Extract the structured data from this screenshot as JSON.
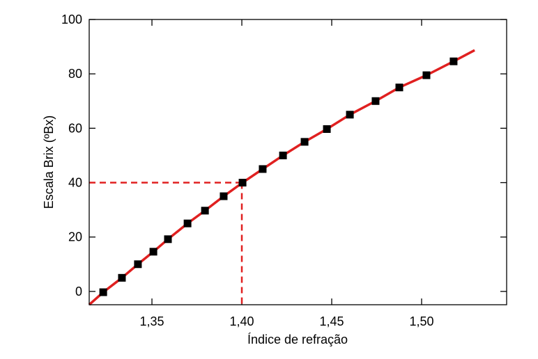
{
  "chart_data": {
    "type": "scatter",
    "xlabel": "Índice de refração",
    "ylabel": "Escala Brix (ºBx)",
    "xlim": [
      1.3151,
      1.5473
    ],
    "ylim": [
      -4.9,
      100
    ],
    "xticks": [
      {
        "value": 1.35,
        "label": "1,35"
      },
      {
        "value": 1.4,
        "label": "1,40"
      },
      {
        "value": 1.45,
        "label": "1,45"
      },
      {
        "value": 1.5,
        "label": "1,50"
      }
    ],
    "yticks": [
      0,
      20,
      40,
      60,
      80,
      100
    ],
    "series": [
      {
        "kind": "line",
        "color": "#e02020",
        "x": [
          1.3151,
          1.3229,
          1.3333,
          1.3422,
          1.3508,
          1.3589,
          1.3698,
          1.3795,
          1.3899,
          1.4004,
          1.4116,
          1.4229,
          1.4349,
          1.4473,
          1.4601,
          1.4744,
          1.4876,
          1.5027,
          1.5178,
          1.5295
        ],
        "values": [
          -4.9,
          -0.3,
          5,
          10,
          14.6,
          19.2,
          25,
          29.7,
          35,
          40,
          45,
          50,
          55,
          59.7,
          65,
          70,
          75,
          79.5,
          84.6,
          88.7
        ]
      },
      {
        "kind": "markers",
        "color": "#000000",
        "x": [
          1.3229,
          1.3333,
          1.3422,
          1.3508,
          1.3589,
          1.3698,
          1.3795,
          1.3899,
          1.4004,
          1.4116,
          1.4229,
          1.4349,
          1.4473,
          1.4601,
          1.4744,
          1.4876,
          1.5027,
          1.5178
        ],
        "values": [
          -0.3,
          5,
          10,
          14.6,
          19.2,
          25,
          29.7,
          35,
          40,
          45,
          50,
          55,
          59.7,
          65,
          70,
          75,
          79.5,
          84.6
        ]
      }
    ],
    "reference": {
      "x": 1.4,
      "y": 40,
      "color": "#e02020"
    }
  }
}
